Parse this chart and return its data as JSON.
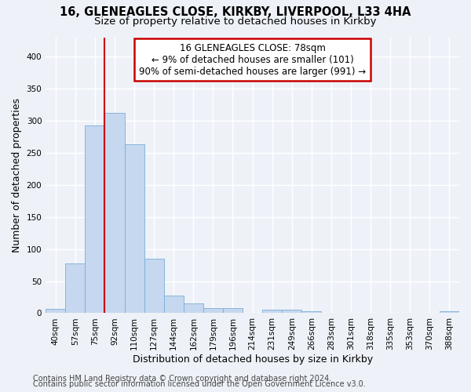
{
  "title_line1": "16, GLENEAGLES CLOSE, KIRKBY, LIVERPOOL, L33 4HA",
  "title_line2": "Size of property relative to detached houses in Kirkby",
  "xlabel": "Distribution of detached houses by size in Kirkby",
  "ylabel": "Number of detached properties",
  "categories": [
    "40sqm",
    "57sqm",
    "75sqm",
    "92sqm",
    "110sqm",
    "127sqm",
    "144sqm",
    "162sqm",
    "179sqm",
    "196sqm",
    "214sqm",
    "231sqm",
    "249sqm",
    "266sqm",
    "283sqm",
    "301sqm",
    "318sqm",
    "335sqm",
    "353sqm",
    "370sqm",
    "388sqm"
  ],
  "values": [
    7,
    77,
    293,
    312,
    263,
    85,
    28,
    15,
    8,
    8,
    0,
    5,
    5,
    3,
    0,
    0,
    0,
    0,
    0,
    0,
    3
  ],
  "bar_color": "#c5d8ef",
  "bar_edge_color": "#7baed4",
  "red_line_x": 2.5,
  "annotation_line1": "16 GLENEAGLES CLOSE: 78sqm",
  "annotation_line2": "← 9% of detached houses are smaller (101)",
  "annotation_line3": "90% of semi-detached houses are larger (991) →",
  "annotation_box_color": "#ffffff",
  "annotation_box_edge": "#cc0000",
  "red_line_color": "#cc0000",
  "footer_line1": "Contains HM Land Registry data © Crown copyright and database right 2024.",
  "footer_line2": "Contains public sector information licensed under the Open Government Licence v3.0.",
  "ylim": [
    0,
    430
  ],
  "yticks": [
    0,
    50,
    100,
    150,
    200,
    250,
    300,
    350,
    400
  ],
  "background_color": "#eef2f8",
  "grid_color": "#ffffff",
  "title_fontsize": 10.5,
  "subtitle_fontsize": 9.5,
  "axis_label_fontsize": 9,
  "tick_fontsize": 7.5,
  "annotation_fontsize": 8.5,
  "footer_fontsize": 7
}
